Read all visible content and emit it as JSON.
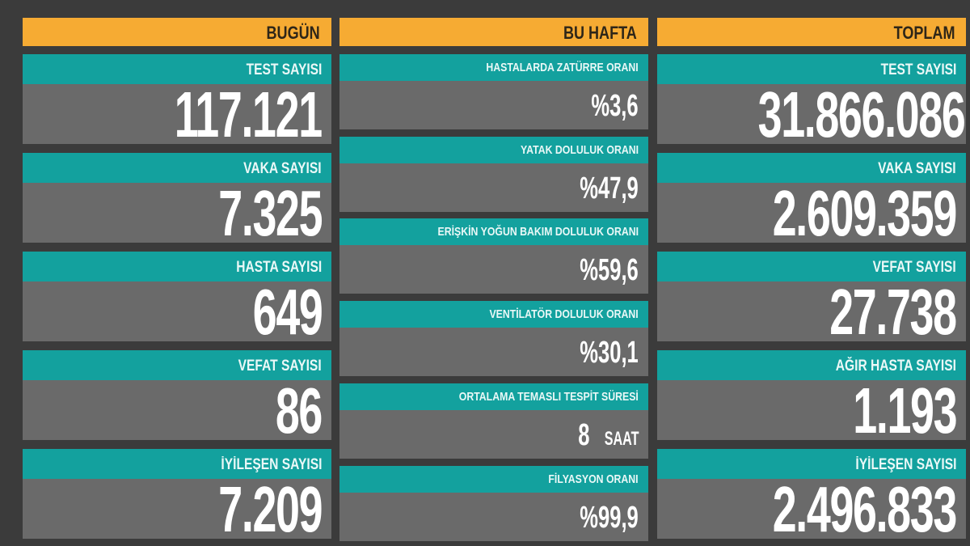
{
  "columns": [
    {
      "title": "BUGÜN",
      "items": [
        {
          "label": "TEST SAYISI",
          "value": "117.121"
        },
        {
          "label": "VAKA SAYISI",
          "value": "7.325"
        },
        {
          "label": "HASTA SAYISI",
          "value": "649"
        },
        {
          "label": "VEFAT SAYISI",
          "value": "86"
        },
        {
          "label": "İYİLEŞEN SAYISI",
          "value": "7.209"
        }
      ]
    },
    {
      "title": "BU HAFTA",
      "items": [
        {
          "label": "HASTALARDA ZATÜRRE ORANI",
          "value": "%3,6"
        },
        {
          "label": "YATAK DOLULUK ORANI",
          "value": "%47,9"
        },
        {
          "label": "ERİŞKİN YOĞUN BAKIM DOLULUK ORANI",
          "value": "%59,6"
        },
        {
          "label": "VENTİLATÖR DOLULUK ORANI",
          "value": "%30,1"
        },
        {
          "label": "ORTALAMA TEMASLI TESPİT SÜRESİ",
          "value": "8",
          "unit": "SAAT"
        },
        {
          "label": "FİLYASYON ORANI",
          "value": "%99,9"
        }
      ]
    },
    {
      "title": "TOPLAM",
      "items": [
        {
          "label": "TEST SAYISI",
          "value": "31.866.086"
        },
        {
          "label": "VAKA SAYISI",
          "value": "2.609.359"
        },
        {
          "label": "VEFAT SAYISI",
          "value": "27.738"
        },
        {
          "label": "AĞIR HASTA SAYISI",
          "value": "1.193"
        },
        {
          "label": "İYİLEŞEN SAYISI",
          "value": "2.496.833"
        }
      ]
    }
  ],
  "colors": {
    "header": "#f6ab33",
    "label": "#13a19e",
    "value_bg": "#6a6a6a",
    "background": "#3b3b3b"
  }
}
